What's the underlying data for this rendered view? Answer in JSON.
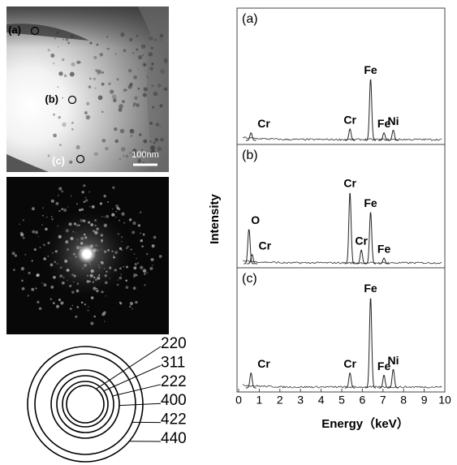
{
  "micrograph": {
    "markers": [
      "(a)",
      "(b)",
      "(c)"
    ],
    "scale_bar": "100nm"
  },
  "ring_pattern": {
    "rings": [
      "220",
      "311",
      "222",
      "400",
      "422",
      "440"
    ]
  },
  "spectra": {
    "y_label": "Intensity",
    "x_label": "Energy（keV）",
    "xlim": [
      0,
      10
    ],
    "xticks": [
      0,
      1,
      2,
      3,
      4,
      5,
      6,
      7,
      8,
      9,
      10
    ],
    "panels": [
      {
        "label": "(a)",
        "peaks": [
          {
            "label": "Cr",
            "energy": 0.6,
            "height": 6
          },
          {
            "label": "Cr",
            "energy": 5.4,
            "height": 9
          },
          {
            "label": "Fe",
            "energy": 6.4,
            "height": 48
          },
          {
            "label": "Fe",
            "energy": 7.05,
            "height": 6
          },
          {
            "label": "Ni",
            "energy": 7.5,
            "height": 8
          }
        ]
      },
      {
        "label": "(b)",
        "peaks": [
          {
            "label": "O",
            "energy": 0.5,
            "height": 30
          },
          {
            "label": "Cr",
            "energy": 0.65,
            "height": 8
          },
          {
            "label": "Cr",
            "energy": 5.4,
            "height": 62
          },
          {
            "label": "Cr",
            "energy": 5.95,
            "height": 12
          },
          {
            "label": "Fe",
            "energy": 6.4,
            "height": 45
          },
          {
            "label": "Fe",
            "energy": 7.05,
            "height": 5
          }
        ]
      },
      {
        "label": "(c)",
        "peaks": [
          {
            "label": "Cr",
            "energy": 0.6,
            "height": 13
          },
          {
            "label": "Cr",
            "energy": 5.4,
            "height": 13
          },
          {
            "label": "Fe",
            "energy": 6.4,
            "height": 78
          },
          {
            "label": "Fe",
            "energy": 7.05,
            "height": 11
          },
          {
            "label": "Ni",
            "energy": 7.5,
            "height": 16
          }
        ]
      }
    ]
  }
}
